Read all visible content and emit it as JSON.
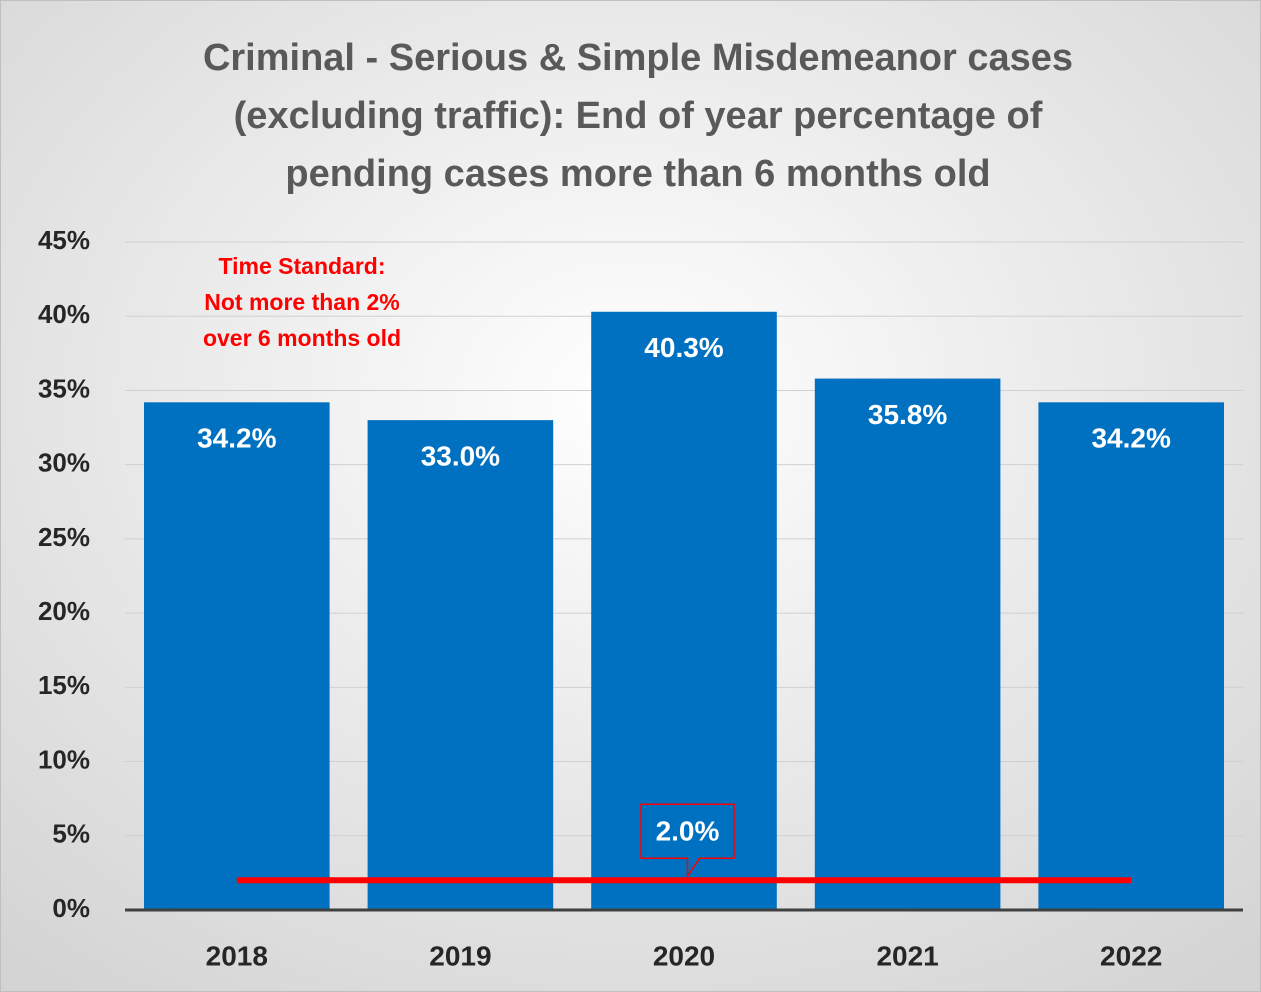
{
  "chart_data": {
    "type": "bar",
    "title": [
      "Criminal - Serious & Simple Misdemeanor cases",
      "(excluding traffic): End of year percentage of",
      "pending cases more than 6 months old"
    ],
    "categories": [
      "2018",
      "2019",
      "2020",
      "2021",
      "2022"
    ],
    "values": [
      34.2,
      33.0,
      40.3,
      35.8,
      34.2
    ],
    "value_labels": [
      "34.2%",
      "33.0%",
      "40.3%",
      "35.8%",
      "34.2%"
    ],
    "color": "#0070c0",
    "ylim": [
      0,
      45
    ],
    "yticks": [
      {
        "value": 0,
        "label": "0%"
      },
      {
        "value": 5,
        "label": "5%"
      },
      {
        "value": 10,
        "label": "10%"
      },
      {
        "value": 15,
        "label": "15%"
      },
      {
        "value": 20,
        "label": "20%"
      },
      {
        "value": 25,
        "label": "25%"
      },
      {
        "value": 30,
        "label": "30%"
      },
      {
        "value": 35,
        "label": "35%"
      },
      {
        "value": 40,
        "label": "40%"
      },
      {
        "value": 45,
        "label": "45%"
      }
    ],
    "grid": true,
    "reference_line": {
      "value": 2.0,
      "label": "2.0%",
      "color": "#ff0000"
    },
    "annotation": {
      "lines": [
        "Time Standard:",
        "Not more than 2%",
        "over 6 months old"
      ],
      "color": "#ff0000"
    }
  }
}
